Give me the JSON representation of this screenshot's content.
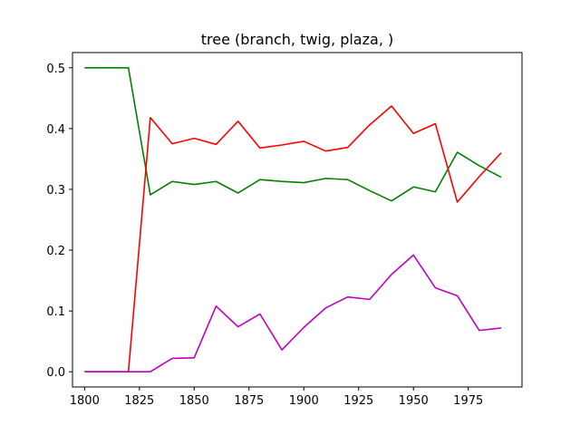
{
  "chart_data": {
    "type": "line",
    "title": "tree (branch, twig, plaza, )",
    "xlabel": "",
    "ylabel": "",
    "xlim": [
      1794.5,
      1999.5
    ],
    "ylim": [
      -0.025,
      0.525
    ],
    "grid": false,
    "x": [
      1800,
      1810,
      1820,
      1830,
      1840,
      1850,
      1860,
      1870,
      1880,
      1890,
      1900,
      1910,
      1920,
      1930,
      1940,
      1950,
      1960,
      1970,
      1980,
      1990
    ],
    "x_ticks": [
      {
        "value": 1800,
        "label": "1800"
      },
      {
        "value": 1825,
        "label": "1825"
      },
      {
        "value": 1850,
        "label": "1850"
      },
      {
        "value": 1875,
        "label": "1875"
      },
      {
        "value": 1900,
        "label": "1900"
      },
      {
        "value": 1925,
        "label": "1925"
      },
      {
        "value": 1950,
        "label": "1950"
      },
      {
        "value": 1975,
        "label": "1975"
      }
    ],
    "y_ticks": [
      {
        "value": 0.0,
        "label": "0.0"
      },
      {
        "value": 0.1,
        "label": "0.1"
      },
      {
        "value": 0.2,
        "label": "0.2"
      },
      {
        "value": 0.3,
        "label": "0.3"
      },
      {
        "value": 0.4,
        "label": "0.4"
      },
      {
        "value": 0.5,
        "label": "0.5"
      }
    ],
    "series": [
      {
        "color": "#008000",
        "values": [
          0.5,
          0.5,
          0.5,
          0.291,
          0.313,
          0.308,
          0.313,
          0.294,
          0.316,
          0.313,
          0.311,
          0.318,
          0.316,
          0.298,
          0.281,
          0.304,
          0.296,
          0.361,
          0.339,
          0.32
        ]
      },
      {
        "color": "#ff0000",
        "values": [
          0.0,
          0.0,
          0.0,
          0.418,
          0.375,
          0.384,
          0.374,
          0.412,
          0.368,
          0.373,
          0.379,
          0.363,
          0.369,
          0.406,
          0.437,
          0.392,
          0.408,
          0.279,
          0.321,
          0.36
        ]
      },
      {
        "color": "#bf00bf",
        "values": [
          0.0,
          0.0,
          0.0,
          0.0,
          0.022,
          0.023,
          0.108,
          0.074,
          0.095,
          0.036,
          0.073,
          0.105,
          0.123,
          0.119,
          0.16,
          0.192,
          0.138,
          0.125,
          0.068,
          0.072
        ]
      }
    ]
  }
}
